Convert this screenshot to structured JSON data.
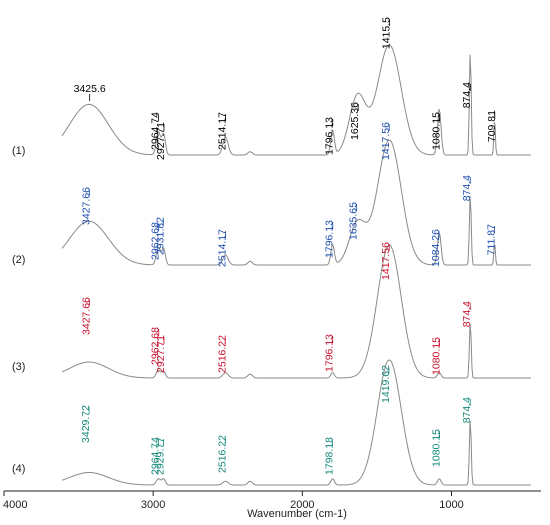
{
  "chart_data": {
    "type": "line",
    "xlabel": "Wavenumber (cm-1)",
    "xlim": [
      4000,
      400
    ],
    "x_reversed": true,
    "x_ticks": [
      4000,
      3000,
      2000,
      1000
    ],
    "grid": false,
    "colors": {
      "trace": "#8a8a8a",
      "label_1": "#000000",
      "label_2": "#1f4fb0",
      "label_3": "#c8102e",
      "label_4": "#13887a"
    },
    "series": [
      {
        "name": "(1)",
        "label_color": "label_1",
        "peaks": [
          {
            "x": 3425.6,
            "label": "3425.6"
          },
          {
            "x": 2964.74,
            "label": "2964.74"
          },
          {
            "x": 2927.71,
            "label": "2927.71"
          },
          {
            "x": 2514.17,
            "label": "2514.17"
          },
          {
            "x": 1796.13,
            "label": "1796.13"
          },
          {
            "x": 1625.36,
            "label": "1625.36"
          },
          {
            "x": 1415.5,
            "label": "1415.5"
          },
          {
            "x": 1080.15,
            "label": "1080.15"
          },
          {
            "x": 874.4,
            "label": "874.4"
          },
          {
            "x": 709.81,
            "label": "709.81"
          }
        ]
      },
      {
        "name": "(2)",
        "label_color": "label_2",
        "peaks": [
          {
            "x": 3427.66,
            "label": "3427.66"
          },
          {
            "x": 2962.68,
            "label": "2962.68"
          },
          {
            "x": 2931.82,
            "label": "2931.82"
          },
          {
            "x": 2514.17,
            "label": "2514.17"
          },
          {
            "x": 1796.13,
            "label": "1796.13"
          },
          {
            "x": 1635.65,
            "label": "1635.65"
          },
          {
            "x": 1417.56,
            "label": "1417.56"
          },
          {
            "x": 1084.26,
            "label": "1084.26"
          },
          {
            "x": 874.4,
            "label": "874.4"
          },
          {
            "x": 711.87,
            "label": "711.87"
          }
        ]
      },
      {
        "name": "(3)",
        "label_color": "label_3",
        "peaks": [
          {
            "x": 3427.66,
            "label": "3427.66"
          },
          {
            "x": 2962.68,
            "label": "2962.68"
          },
          {
            "x": 2927.71,
            "label": "2927.71"
          },
          {
            "x": 2516.22,
            "label": "2516.22"
          },
          {
            "x": 1796.13,
            "label": "1796.13"
          },
          {
            "x": 1417.56,
            "label": "1417.56"
          },
          {
            "x": 1080.15,
            "label": "1080.15"
          },
          {
            "x": 874.4,
            "label": "874.4"
          }
        ]
      },
      {
        "name": "(4)",
        "label_color": "label_4",
        "peaks": [
          {
            "x": 3429.72,
            "label": "3429.72"
          },
          {
            "x": 2964.74,
            "label": "2964.74"
          },
          {
            "x": 2929.77,
            "label": "2929.77"
          },
          {
            "x": 2516.22,
            "label": "2516.22"
          },
          {
            "x": 1798.18,
            "label": "1798.18"
          },
          {
            "x": 1419.62,
            "label": "1419.62"
          },
          {
            "x": 1080.15,
            "label": "1080.15"
          },
          {
            "x": 874.4,
            "label": "874.4"
          }
        ]
      }
    ]
  }
}
